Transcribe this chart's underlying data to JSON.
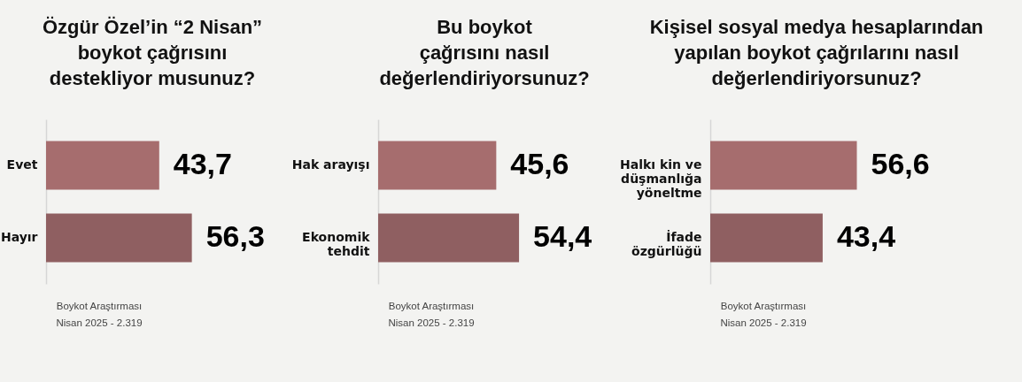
{
  "chart_data": [
    {
      "type": "bar",
      "orientation": "horizontal",
      "title": "Özgür Özel’in “2 Nisan”\nboykot çağrısını\ndestekliyor musunuz?",
      "categories": [
        "Evet",
        "Hayır"
      ],
      "values": [
        43.7,
        56.3
      ],
      "value_labels": [
        "43,7",
        "56,3"
      ],
      "colors": [
        "#a66d6e",
        "#8f5f61"
      ],
      "tick_labels": "y",
      "annotations": [
        "Boykot Araştırması\nNisan 2025 - 2.319"
      ]
    },
    {
      "type": "bar",
      "orientation": "horizontal",
      "title": "Bu boykot\nçağrısını nasıl\ndeğerlendiriyorsunuz?",
      "categories": [
        "Hak arayışı",
        "Ekonomik\ntehdit"
      ],
      "values": [
        45.6,
        54.4
      ],
      "value_labels": [
        "45,6",
        "54,4"
      ],
      "colors": [
        "#a66d6e",
        "#8f5f61"
      ],
      "tick_labels": "y",
      "annotations": [
        "Boykot Araştırması\nNisan 2025 - 2.319"
      ]
    },
    {
      "type": "bar",
      "orientation": "horizontal",
      "title": "Kişisel sosyal medya hesaplarından\nyapılan boykot çağrılarını nasıl\ndeğerlendiriyorsunuz?",
      "categories": [
        "Halkı kin ve\ndüşmanlığa\nyöneltme",
        "İfade\nözgürlüğü"
      ],
      "values": [
        56.6,
        43.4
      ],
      "value_labels": [
        "56,6",
        "43,4"
      ],
      "colors": [
        "#a66d6e",
        "#8f5f61"
      ],
      "tick_labels": "y",
      "annotations": [
        "Boykot Araştırması\nNisan 2025 - 2.319"
      ]
    }
  ]
}
